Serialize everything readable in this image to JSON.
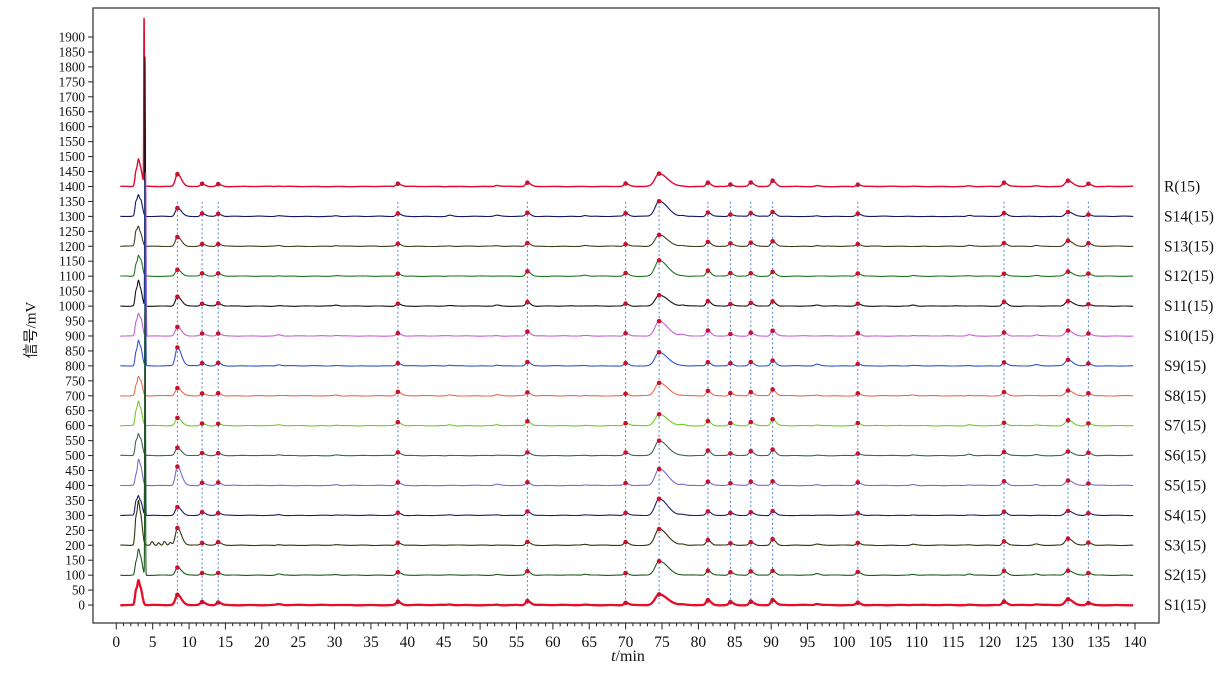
{
  "chart_data": {
    "type": "line",
    "title": "",
    "xlabel": "t/min",
    "xlabel_var": "t",
    "xlabel_unit": "/min",
    "ylabel": "信号/mV",
    "xlim": [
      -3.2,
      143.3
    ],
    "ylim": [
      -60,
      1997
    ],
    "grid": false,
    "legend_position": "right-outside",
    "x_tick_step": 5,
    "x_minor_tick_step": 1,
    "y_tick_step": 50,
    "x_tick_labels": [
      "0",
      "5",
      "10",
      "15",
      "20",
      "25",
      "30",
      "35",
      "40",
      "45",
      "50",
      "55",
      "60",
      "65",
      "70",
      "75",
      "80",
      "85",
      "90",
      "95",
      "100",
      "105",
      "110",
      "115",
      "120",
      "125",
      "130",
      "135",
      "140"
    ],
    "y_tick_labels": [
      "0",
      "50",
      "100",
      "150",
      "200",
      "250",
      "300",
      "350",
      "400",
      "450",
      "500",
      "550",
      "600",
      "650",
      "700",
      "750",
      "800",
      "850",
      "900",
      "950",
      "1000",
      "1050",
      "1100",
      "1150",
      "1200",
      "1250",
      "1300",
      "1350",
      "1400",
      "1450",
      "1500",
      "1550",
      "1600",
      "1650",
      "1700",
      "1750",
      "1800",
      "1850",
      "1900"
    ],
    "common_peaks_min": [
      8.4,
      11.8,
      14.0,
      38.7,
      56.5,
      70.0,
      74.6,
      81.3,
      84.4,
      87.2,
      90.2,
      101.9,
      122.0,
      130.8,
      133.6
    ],
    "peak_heights_mV": [
      27,
      8,
      8,
      10,
      13,
      8,
      44,
      15,
      8,
      11,
      17,
      8,
      11,
      18,
      8
    ],
    "marker_color": "#c81030",
    "refline_color": "#4a7ad0",
    "refline_top_mV": 1352,
    "solvent_cluster": [
      {
        "t": 2.72,
        "h": 40
      },
      {
        "t": 3.08,
        "h": 60
      },
      {
        "t": 3.45,
        "h": 34
      }
    ],
    "minor_bumps": [
      {
        "t": 22.3,
        "h": 3.5
      },
      {
        "t": 30.2,
        "h": 2.5
      },
      {
        "t": 45.8,
        "h": 3.5
      },
      {
        "t": 52.3,
        "h": 3.0
      },
      {
        "t": 64.4,
        "h": 3.0
      },
      {
        "t": 77.8,
        "h": 4.0
      },
      {
        "t": 96.3,
        "h": 4.5
      },
      {
        "t": 109.5,
        "h": 3.0
      },
      {
        "t": 117.2,
        "h": 4.0
      },
      {
        "t": 126.4,
        "h": 4.0
      }
    ],
    "series": [
      {
        "label": "R(15)",
        "color": "#e3082f",
        "offset_mV": 1400,
        "line_width": 1.4,
        "spike": {
          "t": 3.82,
          "top_mV": 1958
        },
        "peak_scale": {
          "0": 1.5
        }
      },
      {
        "label": "S14(15)",
        "color": "#14146a",
        "offset_mV": 1300,
        "line_width": 1.1
      },
      {
        "label": "S13(15)",
        "color": "#3f3f1c",
        "offset_mV": 1200,
        "line_width": 1.1
      },
      {
        "label": "S12(15)",
        "color": "#1e781e",
        "offset_mV": 1100,
        "line_width": 1.1
      },
      {
        "label": "S11(15)",
        "color": "#151010",
        "offset_mV": 1000,
        "line_width": 1.1,
        "spike": {
          "t": 3.95,
          "top_mV": 1832
        }
      },
      {
        "label": "S10(15)",
        "color": "#c95fd7",
        "offset_mV": 900,
        "line_width": 1.1,
        "spike": {
          "t": 4.05,
          "top_mV": 1448
        }
      },
      {
        "label": "S9(15)",
        "color": "#2e55cf",
        "offset_mV": 800,
        "line_width": 1.1,
        "spike": {
          "t": 3.99,
          "top_mV": 1428
        },
        "peak_scale": {
          "0": 1.8
        }
      },
      {
        "label": "S8(15)",
        "color": "#ec6a4a",
        "offset_mV": 700,
        "line_width": 1.1
      },
      {
        "label": "S7(15)",
        "color": "#70cd20",
        "offset_mV": 600,
        "line_width": 1.1
      },
      {
        "label": "S6(15)",
        "color": "#41635a",
        "offset_mV": 500,
        "line_width": 1.1
      },
      {
        "label": "S5(15)",
        "color": "#7d6bc8",
        "offset_mV": 400,
        "line_width": 1.1,
        "peak_scale": {
          "0": 1.9
        }
      },
      {
        "label": "S4(15)",
        "color": "#1e1e6e",
        "offset_mV": 300,
        "line_width": 1.1,
        "spike": {
          "t": 3.95,
          "top_mV": 1004
        }
      },
      {
        "label": "S3(15)",
        "color": "#33330e",
        "offset_mV": 200,
        "line_width": 1.1,
        "cluster_scale": 1.8,
        "peak_scale": {
          "0": 2.6
        },
        "extra_bumps": [
          {
            "t": 4.9,
            "h": 13
          },
          {
            "t": 5.8,
            "h": 9
          },
          {
            "t": 6.6,
            "h": 13
          },
          {
            "t": 7.4,
            "h": 9
          }
        ]
      },
      {
        "label": "S2(15)",
        "color": "#1d5a1d",
        "offset_mV": 100,
        "line_width": 1.1,
        "spike": {
          "t": 3.95,
          "top_mV": 1000
        }
      },
      {
        "label": "S1(15)",
        "color": "#e60f28",
        "offset_mV": 0,
        "line_width": 2.3
      }
    ]
  }
}
